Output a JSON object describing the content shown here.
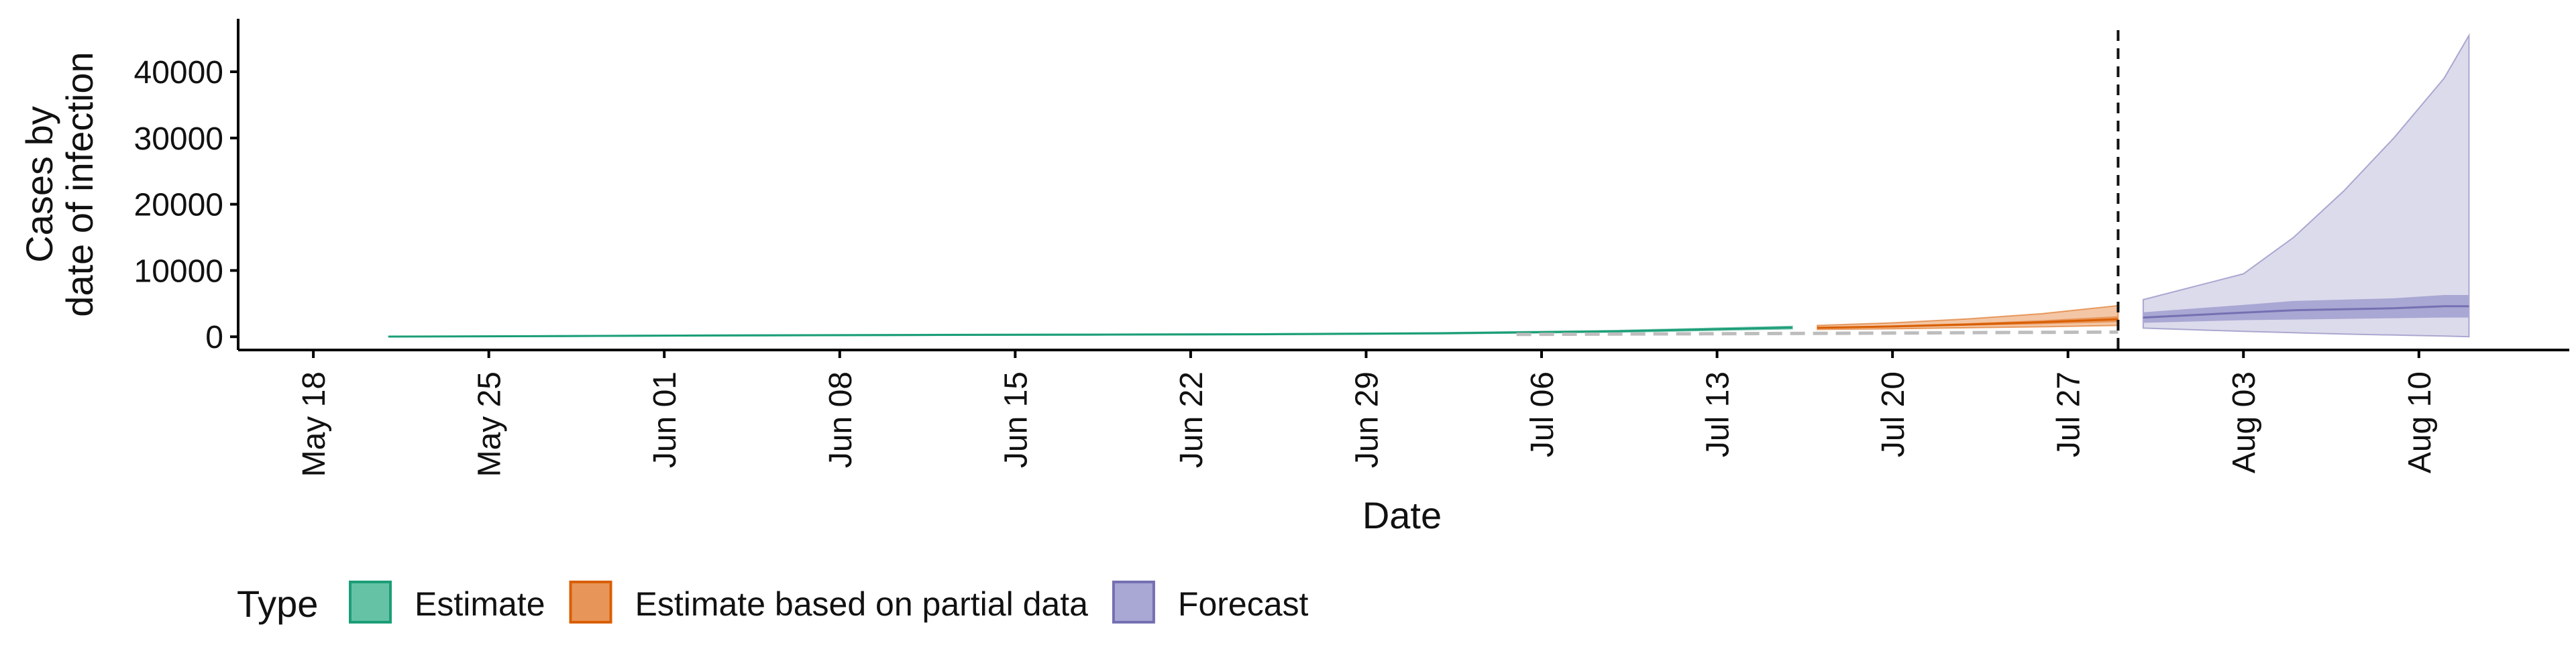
{
  "chart_data": {
    "type": "area",
    "xlabel": "Date",
    "ylabel_lines": [
      "Cases by",
      "date of infection"
    ],
    "ylim": [
      -2000,
      48000
    ],
    "xlim": [
      "2020-05-15",
      "2020-08-16"
    ],
    "y_ticks": [
      0,
      10000,
      20000,
      30000,
      40000
    ],
    "y_tick_labels": [
      "0",
      "10000",
      "20000",
      "30000",
      "40000"
    ],
    "x_ticks": [
      "2020-05-18",
      "2020-05-25",
      "2020-06-01",
      "2020-06-08",
      "2020-06-15",
      "2020-06-22",
      "2020-06-29",
      "2020-07-06",
      "2020-07-13",
      "2020-07-20",
      "2020-07-27",
      "2020-08-03",
      "2020-08-10"
    ],
    "x_tick_labels": [
      "May 18",
      "May 25",
      "Jun 01",
      "Jun 08",
      "Jun 15",
      "Jun 22",
      "Jun 29",
      "Jul 06",
      "Jul 13",
      "Jul 20",
      "Jul 27",
      "Aug 03",
      "Aug 10"
    ],
    "grid": false,
    "legend": {
      "title": "Type",
      "position": "bottom",
      "items": [
        {
          "label": "Estimate",
          "fill": "#66c2a5",
          "stroke": "#1b9e77"
        },
        {
          "label": "Estimate based on partial data",
          "fill": "#e8955a",
          "stroke": "#d95f02"
        },
        {
          "label": "Forecast",
          "fill": "#a9a7d3",
          "stroke": "#7570b3"
        }
      ]
    },
    "vline": {
      "x": "2020-07-29",
      "style": "dashed"
    },
    "series": [
      {
        "name": "Estimate",
        "color": "#1b9e77",
        "fill_outer": "#d1ece3",
        "fill_inner": "#8fd0bb",
        "points": [
          {
            "x": "2020-05-21",
            "lower_90": 10,
            "lower_50": 20,
            "upper_50": 30,
            "upper_90": 40
          },
          {
            "x": "2020-05-28",
            "lower_90": 60,
            "lower_50": 90,
            "upper_50": 120,
            "upper_90": 150
          },
          {
            "x": "2020-06-04",
            "lower_90": 150,
            "lower_50": 190,
            "upper_50": 230,
            "upper_90": 270
          },
          {
            "x": "2020-06-11",
            "lower_90": 210,
            "lower_50": 250,
            "upper_50": 290,
            "upper_90": 330
          },
          {
            "x": "2020-06-18",
            "lower_90": 260,
            "lower_50": 300,
            "upper_50": 340,
            "upper_90": 380
          },
          {
            "x": "2020-06-25",
            "lower_90": 320,
            "lower_50": 360,
            "upper_50": 400,
            "upper_90": 440
          },
          {
            "x": "2020-07-02",
            "lower_90": 450,
            "lower_50": 500,
            "upper_50": 550,
            "upper_90": 600
          },
          {
            "x": "2020-07-09",
            "lower_90": 700,
            "lower_50": 780,
            "upper_50": 860,
            "upper_90": 940
          },
          {
            "x": "2020-07-16",
            "lower_90": 1200,
            "lower_50": 1320,
            "upper_50": 1440,
            "upper_90": 1560
          }
        ]
      },
      {
        "name": "Estimate based on partial data",
        "color": "#d95f02",
        "fill_outer": "#f3c6a5",
        "fill_inner": "#e8955a",
        "points": [
          {
            "x": "2020-07-17",
            "lower_90": 1100,
            "lower_50": 1250,
            "upper_50": 1450,
            "upper_90": 1700
          },
          {
            "x": "2020-07-20",
            "lower_90": 1200,
            "lower_50": 1400,
            "upper_50": 1700,
            "upper_90": 2100
          },
          {
            "x": "2020-07-23",
            "lower_90": 1350,
            "lower_50": 1650,
            "upper_50": 2050,
            "upper_90": 2700
          },
          {
            "x": "2020-07-26",
            "lower_90": 1500,
            "lower_50": 1900,
            "upper_50": 2500,
            "upper_90": 3500
          },
          {
            "x": "2020-07-29",
            "lower_90": 1700,
            "lower_50": 2200,
            "upper_50": 3100,
            "upper_90": 4700
          }
        ]
      },
      {
        "name": "Forecast",
        "color": "#7570b3",
        "fill_outer": "#dcdbec",
        "fill_inner": "#a9a7d3",
        "points": [
          {
            "x": "2020-07-30",
            "lower_90": 1300,
            "lower_50": 2100,
            "upper_50": 3700,
            "upper_90": 5600
          },
          {
            "x": "2020-08-03",
            "lower_90": 800,
            "lower_50": 2500,
            "upper_50": 4800,
            "upper_90": 9500
          },
          {
            "x": "2020-08-05",
            "lower_90": 600,
            "lower_50": 2600,
            "upper_50": 5400,
            "upper_90": 15000
          },
          {
            "x": "2020-08-07",
            "lower_90": 400,
            "lower_50": 2700,
            "upper_50": 5600,
            "upper_90": 22000
          },
          {
            "x": "2020-08-09",
            "lower_90": 250,
            "lower_50": 2800,
            "upper_50": 5800,
            "upper_90": 30000
          },
          {
            "x": "2020-08-11",
            "lower_90": 100,
            "lower_50": 2900,
            "upper_50": 6300,
            "upper_90": 39000
          },
          {
            "x": "2020-08-12",
            "lower_90": 0,
            "lower_50": 2900,
            "upper_50": 6300,
            "upper_90": 45500
          }
        ]
      }
    ],
    "reported_cases": {
      "color": "#bdbdbd",
      "style": "dashed",
      "points": [
        {
          "x": "2020-07-05",
          "y": 350
        },
        {
          "x": "2020-07-10",
          "y": 420
        },
        {
          "x": "2020-07-15",
          "y": 480
        },
        {
          "x": "2020-07-20",
          "y": 550
        },
        {
          "x": "2020-07-25",
          "y": 650
        },
        {
          "x": "2020-07-29",
          "y": 700
        }
      ]
    }
  }
}
